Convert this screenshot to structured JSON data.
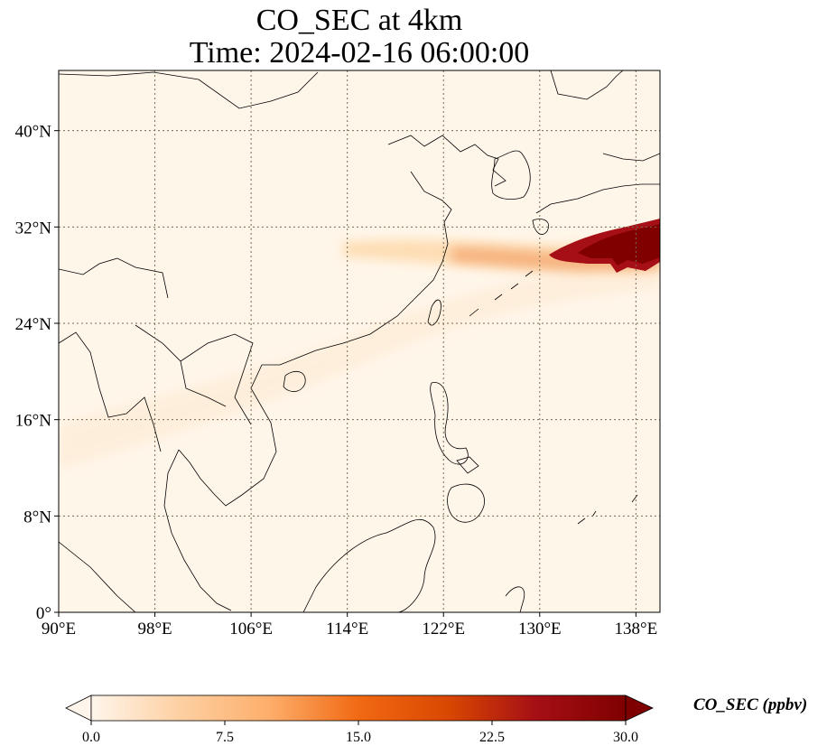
{
  "map": {
    "title_line1": "CO_SEC at 4km",
    "title_line2": "Time: 2024-02-16 06:00:00",
    "lon_range": [
      90,
      140
    ],
    "lat_range": [
      0,
      45
    ],
    "lon_ticks": [
      {
        "value": 90,
        "label": "90°E"
      },
      {
        "value": 98,
        "label": "98°E"
      },
      {
        "value": 106,
        "label": "106°E"
      },
      {
        "value": 114,
        "label": "114°E"
      },
      {
        "value": 122,
        "label": "122°E"
      },
      {
        "value": 130,
        "label": "130°E"
      },
      {
        "value": 138,
        "label": "138°E"
      }
    ],
    "lat_ticks": [
      {
        "value": 0,
        "label": "0°"
      },
      {
        "value": 8,
        "label": "8°N"
      },
      {
        "value": 16,
        "label": "16°N"
      },
      {
        "value": 24,
        "label": "24°N"
      },
      {
        "value": 32,
        "label": "32°N"
      },
      {
        "value": 40,
        "label": "40°N"
      }
    ],
    "gridlines": true,
    "background_color": "#fff6ea",
    "plume_colors": [
      "#fdd9aa",
      "#f4a46d",
      "#d7301f",
      "#8b0000"
    ]
  },
  "colorbar": {
    "title": "CO_SEC (ppbv)",
    "range": [
      0.0,
      30.0
    ],
    "ticks": [
      {
        "value": 0.0,
        "label": "0.0"
      },
      {
        "value": 7.5,
        "label": "7.5"
      },
      {
        "value": 15.0,
        "label": "15.0"
      },
      {
        "value": 22.5,
        "label": "22.5"
      },
      {
        "value": 30.0,
        "label": "30.0"
      }
    ],
    "extend": "both",
    "colormap": [
      "#fff5eb",
      "#fdd0a2",
      "#fdae6b",
      "#f16913",
      "#d94801",
      "#a50f15",
      "#7f0000"
    ]
  }
}
